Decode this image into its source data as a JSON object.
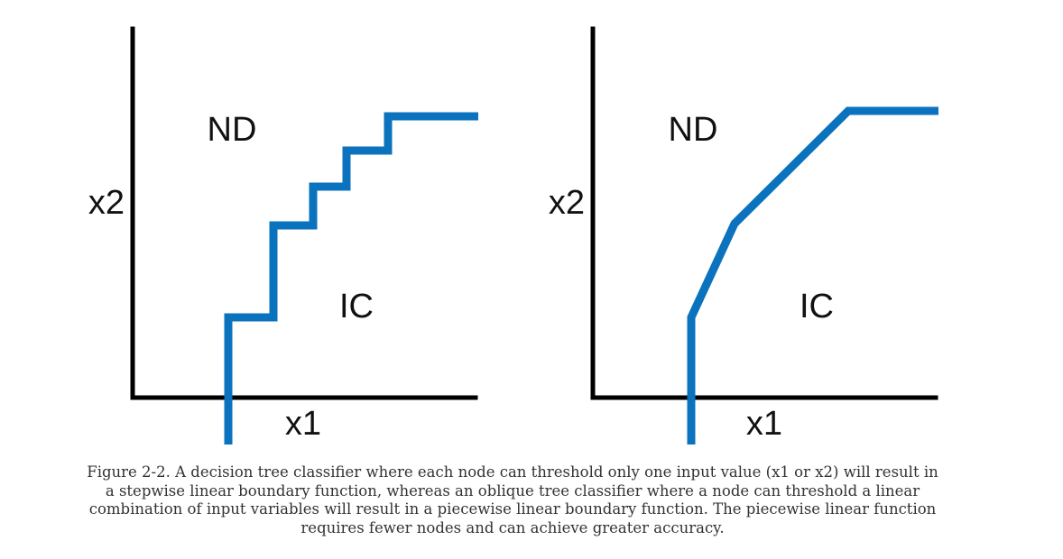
{
  "figure": {
    "panels": [
      {
        "boundary_type": "stepwise",
        "x_axis_label": "x1",
        "y_axis_label": "x2",
        "region_above": "ND",
        "region_below": "IC"
      },
      {
        "boundary_type": "piecewise",
        "x_axis_label": "x1",
        "y_axis_label": "x2",
        "region_above": "ND",
        "region_below": "IC"
      }
    ],
    "colors": {
      "axis": "#000000",
      "boundary": "#0b72bd"
    }
  },
  "caption": "Figure 2-2. A decision tree classifier where each node can threshold only one input value (x1 or x2) will result in a stepwise linear boundary function, whereas an oblique tree classifier where a node can threshold a lin­ear combination of input variables will result in a piecewise linear boundary function. The piecewise linear function requires fewer nodes and can achieve greater accuracy."
}
